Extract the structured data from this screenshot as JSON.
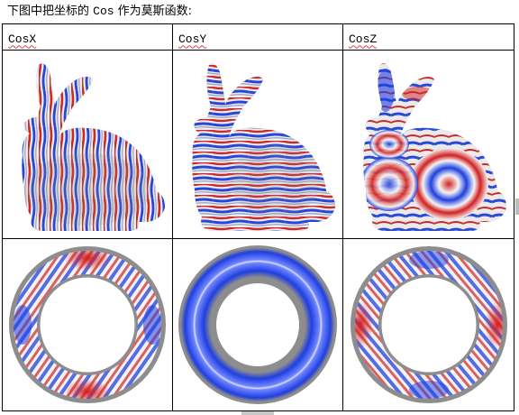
{
  "document": {
    "caption_prefix": "下图中把坐标的 ",
    "caption_code": "Cos",
    "caption_suffix": " 作为莫斯函数:",
    "columns": [
      {
        "label": "CosX",
        "bunny_image": "bunny-cosx-colormap",
        "torus_image": "torus-cosx-colormap"
      },
      {
        "label": "CosY",
        "bunny_image": "bunny-cosy-colormap",
        "torus_image": "torus-cosy-colormap"
      },
      {
        "label": "CosZ",
        "bunny_image": "bunny-cosz-colormap",
        "torus_image": "torus-cosz-colormap"
      }
    ]
  },
  "colors": {
    "mesh_gray": "#8d8d8d",
    "stripe_red": "#d32020",
    "stripe_blue": "#1f3fe0",
    "stripe_white": "#f4f4f4",
    "border": "#000000",
    "spellcheck_underline": "#d94040"
  }
}
